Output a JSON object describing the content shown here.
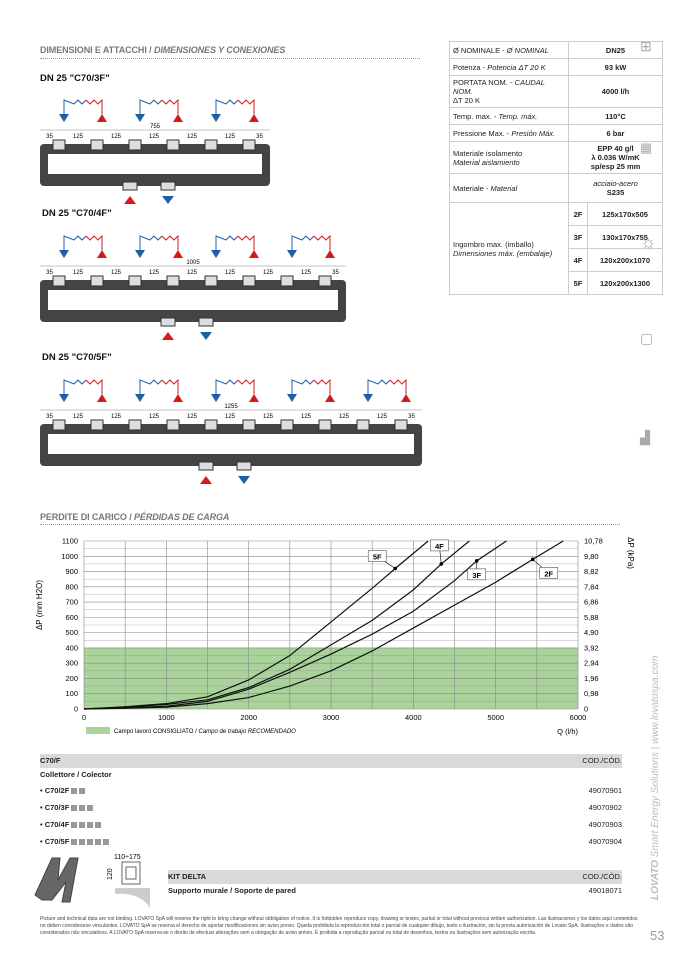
{
  "section1": {
    "title": "DIMENSIONI E ATTACCHI",
    "title_es": "DIMENSIONES Y CONEXIONES"
  },
  "diagrams": [
    {
      "title": "DN 25 \"C70/3F\"",
      "outlets": 3,
      "total": "755",
      "dims": [
        "35",
        "125",
        "125",
        "125",
        "125",
        "125",
        "35"
      ],
      "bottom": [
        "up",
        "down"
      ]
    },
    {
      "title": "DN 25 \"C70/4F\"",
      "outlets": 4,
      "total": "1005",
      "dims": [
        "35",
        "125",
        "125",
        "125",
        "125",
        "125",
        "125",
        "125",
        "35"
      ],
      "bottom": [
        "up",
        "down"
      ]
    },
    {
      "title": "DN 25 \"C70/5F\"",
      "outlets": 5,
      "total": "1255",
      "dims": [
        "35",
        "125",
        "125",
        "125",
        "125",
        "125",
        "125",
        "125",
        "125",
        "125",
        "35"
      ],
      "bottom": [
        "up",
        "down"
      ]
    }
  ],
  "spec": {
    "rows": [
      {
        "label": "Ø NOMINALE - ",
        "label_es": "Ø NOMINAL",
        "value": "DN25"
      },
      {
        "label": "Potenza - ",
        "label_es": "Potencia ΔT 20 K",
        "value": "93 kW"
      },
      {
        "label": "PORTATA NOM.  - ",
        "label_es": "CAUDAL NOM.",
        "label2": "ΔT 20 K",
        "value": "4000 l/h"
      },
      {
        "label": "Temp. max. - ",
        "label_es": "Temp. máx.",
        "value": "110°C"
      },
      {
        "label": "Pressione Max. - ",
        "label_es": "Presión Máx.",
        "value": "6 bar"
      },
      {
        "label": "Materiale isolamento",
        "label_es": "Material aislamiento",
        "value": "EPP 40 g/l",
        "value2": "λ 0.036 W/mK",
        "value3": "sp/esp 25 mm"
      },
      {
        "label": "Materiale - ",
        "label_es": "Material",
        "value": "acciaio-acero",
        "value2": "S235"
      }
    ],
    "size_label": "Ingombro max. (imballo)",
    "size_label_es": "Dimensiones máx. (embalaje)",
    "sizes": [
      {
        "k": "2F",
        "v": "125x170x505"
      },
      {
        "k": "3F",
        "v": "130x170x755"
      },
      {
        "k": "4F",
        "v": "120x200x1070"
      },
      {
        "k": "5F",
        "v": "120x200x1300"
      }
    ]
  },
  "section2": {
    "title": "PERDITE DI CARICO",
    "title_es": "PÉRDIDAS DE CARGA"
  },
  "chart_data": {
    "type": "line",
    "xlabel": "Q (l/h)",
    "ylabel": "ΔP (mm H2O)",
    "y2label": "ΔP (kPa)",
    "xlim": [
      0,
      6000
    ],
    "ylim": [
      0,
      1100
    ],
    "xticks": [
      "0",
      "1000",
      "2000",
      "3000",
      "4000",
      "5000",
      "6000"
    ],
    "yticks": [
      "0",
      "100",
      "200",
      "300",
      "400",
      "500",
      "600",
      "700",
      "800",
      "900",
      "1000",
      "1100"
    ],
    "y2ticks": [
      "0",
      "0,98",
      "1,96",
      "2,94",
      "3,92",
      "4,90",
      "5,88",
      "6,86",
      "7,84",
      "8,82",
      "9,80",
      "10,78"
    ],
    "grid": true,
    "band": {
      "from": 0,
      "to": 400,
      "color": "#a9d39a",
      "label": "Campo lavoro CONSIGLIATO / ",
      "label_es": "Campo de trabajo RECOMENDADO"
    },
    "series": [
      {
        "name": "5F",
        "x": [
          0,
          500,
          1000,
          1500,
          2000,
          2500,
          3000,
          3500,
          3780,
          4180
        ],
        "y": [
          0,
          15,
          35,
          80,
          190,
          350,
          570,
          790,
          920,
          1100
        ],
        "marker": [
          3780,
          920
        ]
      },
      {
        "name": "4F",
        "x": [
          0,
          500,
          1000,
          1500,
          2000,
          2500,
          3000,
          3500,
          4000,
          4340,
          4680
        ],
        "y": [
          0,
          12,
          30,
          60,
          140,
          260,
          420,
          580,
          780,
          950,
          1100
        ],
        "marker": [
          4340,
          950
        ]
      },
      {
        "name": "3F",
        "x": [
          0,
          500,
          1000,
          1500,
          2000,
          2500,
          3000,
          3500,
          4000,
          4500,
          4770,
          5130
        ],
        "y": [
          0,
          8,
          18,
          50,
          130,
          240,
          360,
          490,
          640,
          840,
          970,
          1100
        ],
        "marker": [
          4770,
          970
        ]
      },
      {
        "name": "2F",
        "x": [
          0,
          500,
          1000,
          1500,
          2000,
          2500,
          3000,
          3500,
          4000,
          4500,
          5000,
          5450,
          5820
        ],
        "y": [
          0,
          5,
          12,
          35,
          75,
          150,
          250,
          380,
          530,
          680,
          830,
          980,
          1100
        ],
        "marker": [
          5450,
          980
        ]
      }
    ],
    "line_color": "#111"
  },
  "products": {
    "header": "C70/F",
    "code_header": "COD./CÓD.",
    "subtitle": "Collettore / Colector",
    "items": [
      {
        "name": "• C70/2F",
        "n": 2,
        "code": "49070901"
      },
      {
        "name": "• C70/3F",
        "n": 3,
        "code": "49070902"
      },
      {
        "name": "• C70/4F",
        "n": 4,
        "code": "49070903"
      },
      {
        "name": "• C70/5F",
        "n": 5,
        "code": "49070904"
      }
    ]
  },
  "kit": {
    "header": "KIT DELTA",
    "code_header": "COD./CÓD.",
    "name": "Supporto murale / Soporte de pared",
    "code": "49018071",
    "dim_w": "110÷175",
    "dim_h": "120"
  },
  "footer": "Picture and technical data are not binding. LOVATO SpA will reserve the right to bring change without obbligation of notice. It is forbidden reproduce copy, drawing or textes, partial or total without previous written authorization. Las ilustraciones y los datos aquí contenidos no deben considerarse vinculantes. LOVATO SpA se reserva el derecho de aportar modificaciones sin aviso previo. Queda prohibida la reproducción total o parcial de cualquier dibujo, texto o ilustración, sin la previa autorización de Lovato SpA. Ilustrações e dados são considerados não vinculativos. A LOVATO SpA reserva-se o direito de efectuar alterações sem a obrigação de aviso prévio. É proibida a reprodução parcial ou total de desenhos, textos ou ilustrações sem autorização escrita.",
  "brand": {
    "name": "LOVATO",
    "tagline": " Smart Energy Solutions  |  www.lovatospa.com"
  },
  "page_number": "53",
  "colors": {
    "blue": "#1f5fa8",
    "red": "#d7191c",
    "band": "#a9d39a",
    "bar": "#d9d9d9"
  }
}
